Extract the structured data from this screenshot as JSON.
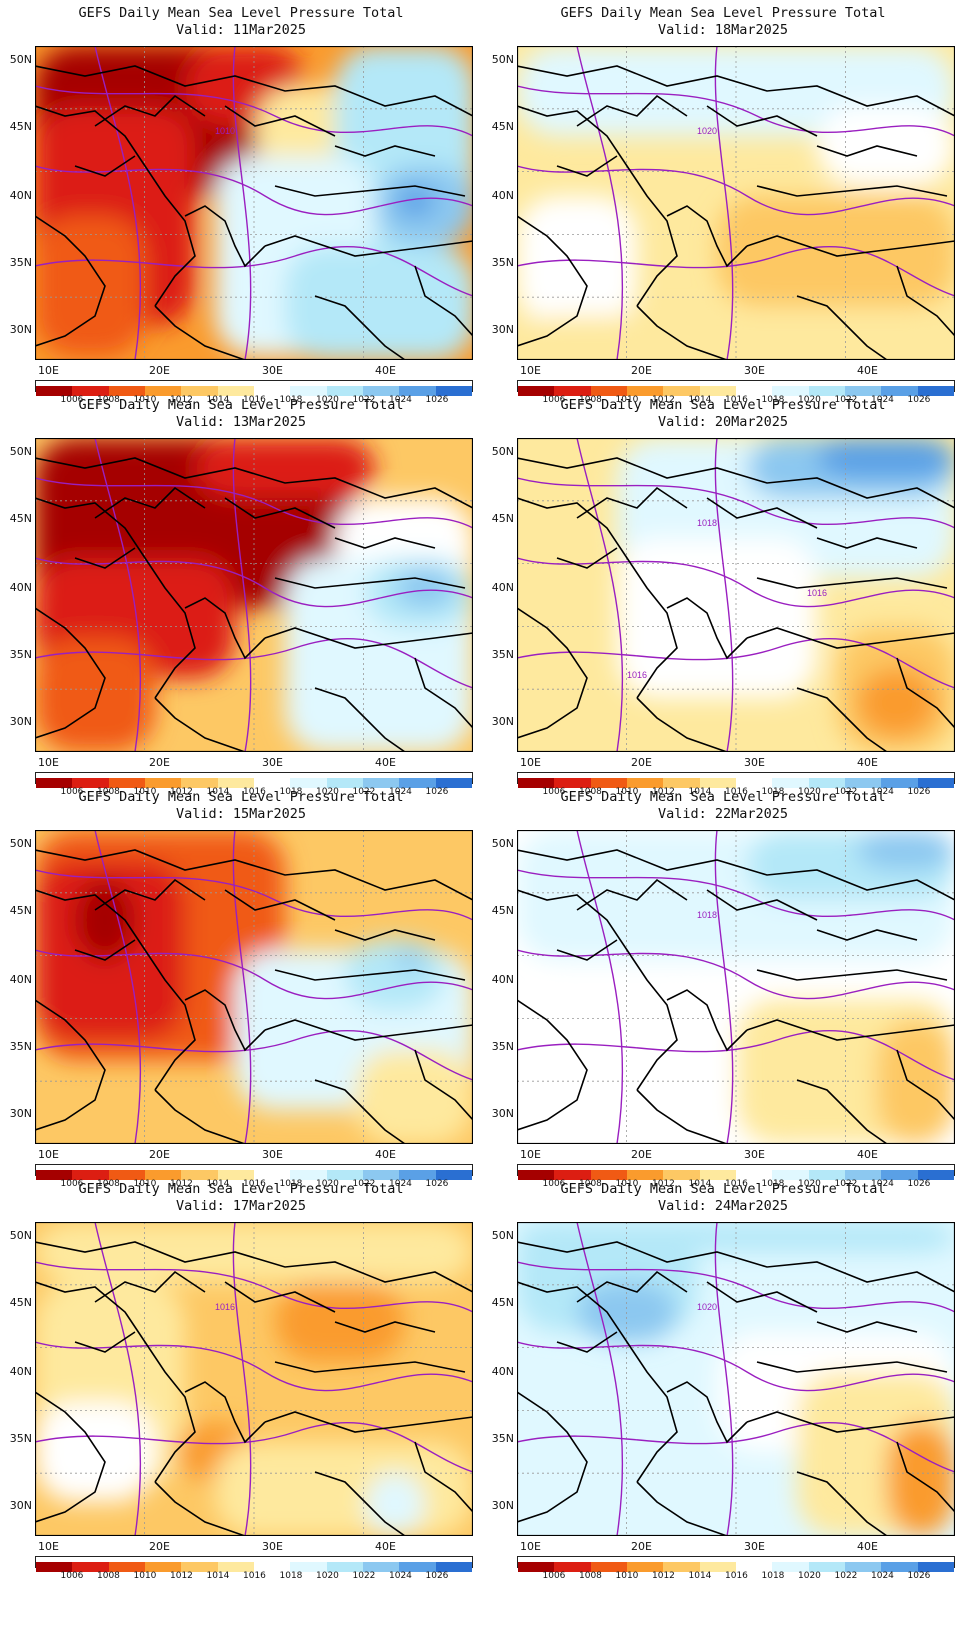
{
  "panel_title": "GEFS Daily Mean Sea Level Pressure Total",
  "lat_labels": [
    "50N",
    "45N",
    "40N",
    "35N",
    "30N"
  ],
  "lon_labels": [
    "10E",
    "20E",
    "30E",
    "40E"
  ],
  "colorbar": {
    "labels": [
      "1006",
      "1008",
      "1010",
      "1012",
      "1014",
      "1016",
      "1018",
      "1020",
      "1022",
      "1024",
      "1026"
    ],
    "colors": [
      "#a50000",
      "#dc1e12",
      "#f05a14",
      "#fa9b2d",
      "#fdc864",
      "#fee99e",
      "#ffffff",
      "#e0f8ff",
      "#b4e8f8",
      "#8cc8f0",
      "#5aa0e6",
      "#2a6fd2"
    ]
  },
  "contour_color": "#9a1fc0",
  "panels": [
    {
      "valid": "Valid: 11Mar2025",
      "contour_label": "1010"
    },
    {
      "valid": "Valid: 18Mar2025",
      "contour_label": "1020"
    },
    {
      "valid": "Valid: 13Mar2025",
      "contour_label": ""
    },
    {
      "valid": "Valid: 20Mar2025",
      "contour_label": "1018",
      "contour_label_2": "1016",
      "contour_label_3": "1016"
    },
    {
      "valid": "Valid: 15Mar2025",
      "contour_label": ""
    },
    {
      "valid": "Valid: 22Mar2025",
      "contour_label": "1018"
    },
    {
      "valid": "Valid: 17Mar2025",
      "contour_label": "1016"
    },
    {
      "valid": "Valid: 24Mar2025",
      "contour_label": "1020"
    }
  ]
}
